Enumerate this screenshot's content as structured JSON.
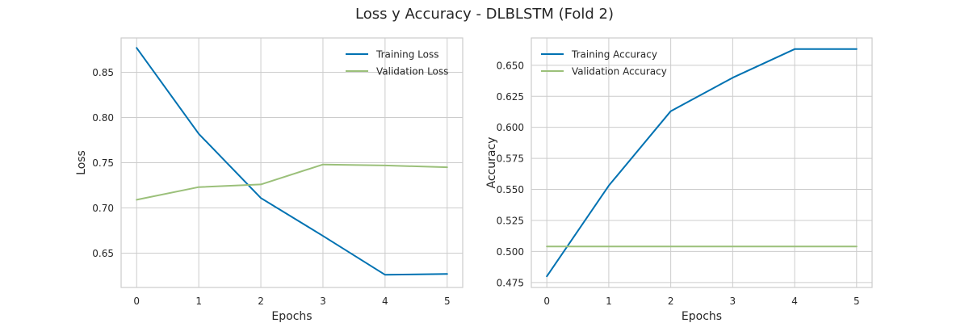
{
  "suptitle": "Loss y Accuracy - DLBLSTM (Fold 2)",
  "colors": {
    "training": "#0072B2",
    "validation": "#9BC07A"
  },
  "chart_data": [
    {
      "type": "line",
      "xlabel": "Epochs",
      "ylabel": "Loss",
      "x": [
        0,
        1,
        2,
        3,
        4,
        5
      ],
      "xlim": [
        -0.25,
        5.25
      ],
      "ylim": [
        0.612,
        0.888
      ],
      "yticks": [
        0.65,
        0.7,
        0.75,
        0.8,
        0.85
      ],
      "ytick_labels": [
        "0.65",
        "0.70",
        "0.75",
        "0.80",
        "0.85"
      ],
      "xticks": [
        0,
        1,
        2,
        3,
        4,
        5
      ],
      "xtick_labels": [
        "0",
        "1",
        "2",
        "3",
        "4",
        "5"
      ],
      "legend_position": "top-right",
      "series": [
        {
          "name": "Training Loss",
          "color_key": "training",
          "values": [
            0.877,
            0.782,
            0.711,
            0.669,
            0.626,
            0.627
          ]
        },
        {
          "name": "Validation Loss",
          "color_key": "validation",
          "values": [
            0.709,
            0.723,
            0.726,
            0.748,
            0.747,
            0.745
          ]
        }
      ]
    },
    {
      "type": "line",
      "xlabel": "Epochs",
      "ylabel": "Accuracy",
      "x": [
        0,
        1,
        2,
        3,
        4,
        5
      ],
      "xlim": [
        -0.25,
        5.25
      ],
      "ylim": [
        0.471,
        0.672
      ],
      "yticks": [
        0.475,
        0.5,
        0.525,
        0.55,
        0.575,
        0.6,
        0.625,
        0.65
      ],
      "ytick_labels": [
        "0.475",
        "0.500",
        "0.525",
        "0.550",
        "0.575",
        "0.600",
        "0.625",
        "0.650"
      ],
      "xticks": [
        0,
        1,
        2,
        3,
        4,
        5
      ],
      "xtick_labels": [
        "0",
        "1",
        "2",
        "3",
        "4",
        "5"
      ],
      "legend_position": "top-left",
      "series": [
        {
          "name": "Training Accuracy",
          "color_key": "training",
          "values": [
            0.48,
            0.553,
            0.613,
            0.64,
            0.663,
            0.663
          ]
        },
        {
          "name": "Validation Accuracy",
          "color_key": "validation",
          "values": [
            0.504,
            0.504,
            0.504,
            0.504,
            0.504,
            0.504
          ]
        }
      ]
    }
  ]
}
